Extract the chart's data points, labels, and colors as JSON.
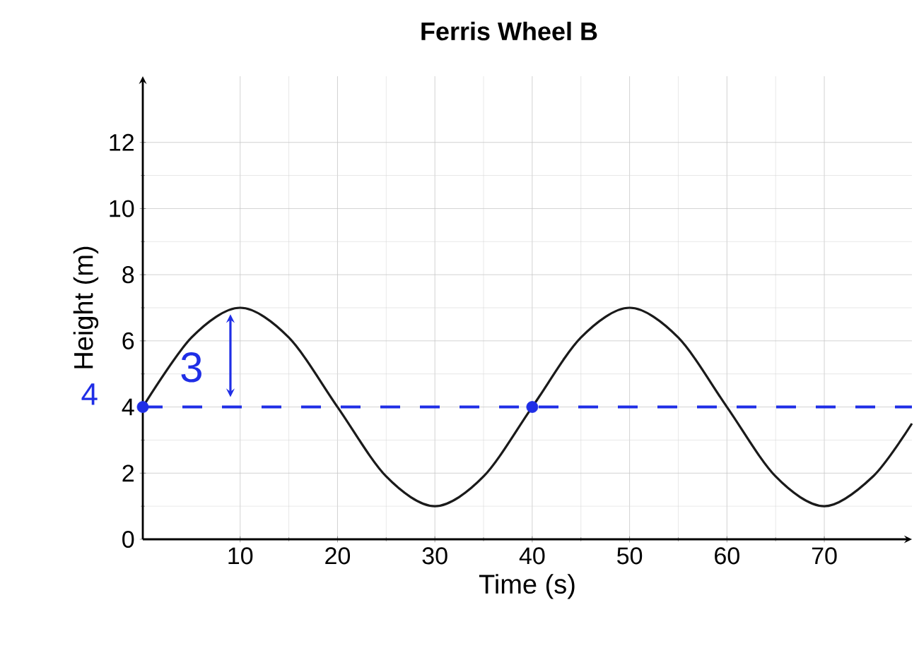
{
  "chart_data": {
    "type": "line",
    "title": "Ferris Wheel B",
    "xlabel": "Time (s)",
    "ylabel": "Height (m)",
    "x": [
      0,
      5,
      10,
      15,
      20,
      25,
      30,
      35,
      40,
      45,
      50,
      55,
      60,
      65,
      70,
      75,
      79
    ],
    "series": [
      {
        "color": "#1a1a1a",
        "values": [
          4,
          6.1,
          7,
          6.1,
          4,
          1.9,
          1,
          1.9,
          4,
          6.1,
          7,
          6.1,
          4,
          1.9,
          1,
          1.9,
          3.5
        ]
      },
      {
        "type": "scatter",
        "color": "#1f2ee6",
        "x": [
          0,
          40
        ],
        "values": [
          4,
          4
        ],
        "marker": "circle"
      }
    ],
    "xlim": [
      0,
      79
    ],
    "ylim": [
      0,
      14
    ],
    "xticks": [
      10,
      20,
      30,
      40,
      50,
      60,
      70
    ],
    "yticks": [
      0,
      2,
      4,
      6,
      8,
      10,
      12
    ],
    "grid": true,
    "marker": "none",
    "ref_lines": [
      {
        "axis": "y",
        "value": 4,
        "color": "#1f2ee6",
        "line_style": "dashed"
      }
    ],
    "annotations": [
      {
        "text": "4",
        "x": 0,
        "y": 4
      },
      "3"
    ]
  }
}
